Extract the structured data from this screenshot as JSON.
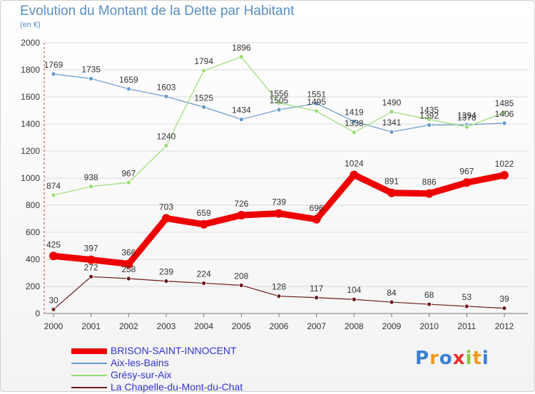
{
  "header": {
    "title": "Evolution du Montant de la Dette par Habitant",
    "unit": "(en €)"
  },
  "chart_data": {
    "type": "line",
    "title": "Evolution du Montant de la Dette par Habitant",
    "subtitle": "(en €)",
    "xlabel": "",
    "ylabel": "",
    "x": [
      2000,
      2001,
      2002,
      2003,
      2004,
      2005,
      2006,
      2007,
      2008,
      2009,
      2010,
      2011,
      2012
    ],
    "ylim": [
      0,
      2000
    ],
    "yticks": [
      0,
      200,
      400,
      600,
      800,
      1000,
      1200,
      1400,
      1600,
      1800,
      2000
    ],
    "grid": true,
    "legend_position": "bottom-left",
    "series": [
      {
        "name": "BRISON-SAINT-INNOCENT",
        "color": "#ee0000",
        "values": [
          425,
          397,
          366,
          703,
          659,
          726,
          739,
          696,
          1024,
          891,
          886,
          967,
          1022
        ],
        "labels": [
          "425",
          "397",
          "366",
          "703",
          "659",
          "726",
          "739",
          "696",
          "1024",
          "891",
          "886",
          "967",
          "1022"
        ]
      },
      {
        "name": "Aix-les-Bains",
        "color": "#6699cc",
        "values": [
          1769,
          1735,
          1659,
          1603,
          1525,
          1434,
          1505,
          1551,
          1419,
          1341,
          1392,
          1394,
          1406
        ],
        "labels": [
          "1769",
          "1735",
          "1659",
          "1603",
          "1525",
          "1434",
          "1505",
          "1551",
          "1419",
          "1341",
          "1392",
          "1394",
          "1406"
        ]
      },
      {
        "name": "Grésy-sur-Aix",
        "color": "#99dd77",
        "values": [
          874,
          938,
          967,
          1240,
          1794,
          1896,
          1556,
          1495,
          1338,
          1490,
          1435,
          1378,
          1485
        ],
        "labels": [
          "874",
          "938",
          "967",
          "1240",
          "1794",
          "1896",
          "1556",
          "1495",
          "1338",
          "1490",
          "1435",
          "1378",
          "1485"
        ]
      },
      {
        "name": "La Chapelle-du-Mont-du-Chat",
        "color": "#6b1a1a",
        "values": [
          30,
          272,
          258,
          239,
          224,
          208,
          128,
          117,
          104,
          84,
          68,
          53,
          39
        ],
        "labels": [
          "30",
          "272",
          "258",
          "239",
          "224",
          "208",
          "128",
          "117",
          "104",
          "84",
          "68",
          "53",
          "39"
        ]
      }
    ]
  },
  "logo": {
    "text": "Proxiti",
    "letters": [
      {
        "ch": "P",
        "color": "#3b7fd1"
      },
      {
        "ch": "r",
        "color": "#f29a20"
      },
      {
        "ch": "o",
        "color": "#3b7fd1"
      },
      {
        "ch": "x",
        "color": "#e8302a"
      },
      {
        "ch": "i",
        "color": "#8cc63f"
      },
      {
        "ch": "t",
        "color": "#f29a20"
      },
      {
        "ch": "i",
        "color": "#3b7fd1"
      }
    ]
  }
}
